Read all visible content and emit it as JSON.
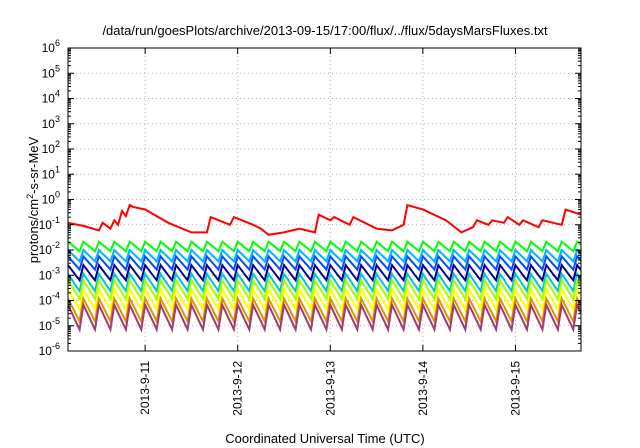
{
  "chart_data": {
    "type": "line",
    "title": "/data/run/goesPlots/archive/2013-09-15/17:00/flux/../flux/5daysMarsFluxes.txt",
    "xlabel": "Coordinated Universal Time (UTC)",
    "ylabel": "protons/cm2-s-sr-MeV",
    "yscale": "log",
    "ylim": [
      1e-06,
      1000000.0
    ],
    "xlim": [
      "2013-09-10 04:00",
      "2013-09-15 17:00"
    ],
    "grid": true,
    "legend": "none",
    "x_ticks": [
      "2013-9-11",
      "2013-9-12",
      "2013-9-13",
      "2013-9-14",
      "2013-9-15"
    ],
    "y_ticks": [
      {
        "base": "10",
        "exp": "-6"
      },
      {
        "base": "10",
        "exp": "-5"
      },
      {
        "base": "10",
        "exp": "-4"
      },
      {
        "base": "10",
        "exp": "-3"
      },
      {
        "base": "10",
        "exp": "-2"
      },
      {
        "base": "10",
        "exp": "-1"
      },
      {
        "base": "10",
        "exp": "0"
      },
      {
        "base": "10",
        "exp": "1"
      },
      {
        "base": "10",
        "exp": "2"
      },
      {
        "base": "10",
        "exp": "3"
      },
      {
        "base": "10",
        "exp": "4"
      },
      {
        "base": "10",
        "exp": "5"
      },
      {
        "base": "10",
        "exp": "6"
      }
    ],
    "series": [
      {
        "color": "#ff0000",
        "x": [
          "2013-09-10 04:00",
          "2013-09-10 08:00",
          "2013-09-10 12:00",
          "2013-09-10 13:00",
          "2013-09-10 15:00",
          "2013-09-10 16:00",
          "2013-09-10 17:00",
          "2013-09-10 18:00",
          "2013-09-10 19:00",
          "2013-09-10 20:00",
          "2013-09-10 21:00",
          "2013-09-11 00:00",
          "2013-09-11 06:00",
          "2013-09-11 12:00",
          "2013-09-11 16:00",
          "2013-09-11 17:00",
          "2013-09-11 22:00",
          "2013-09-11 23:00",
          "2013-09-12 04:00",
          "2013-09-12 06:00",
          "2013-09-12 08:00",
          "2013-09-12 12:00",
          "2013-09-12 16:00",
          "2013-09-12 20:00",
          "2013-09-12 21:00",
          "2013-09-13 00:00",
          "2013-09-13 01:00",
          "2013-09-13 05:00",
          "2013-09-13 06:00",
          "2013-09-13 12:00",
          "2013-09-13 16:00",
          "2013-09-13 19:00",
          "2013-09-13 20:00",
          "2013-09-14 00:00",
          "2013-09-14 06:00",
          "2013-09-14 10:00",
          "2013-09-14 13:00",
          "2013-09-14 14:00",
          "2013-09-14 17:00",
          "2013-09-14 18:00",
          "2013-09-14 21:00",
          "2013-09-14 22:00",
          "2013-09-15 01:00",
          "2013-09-15 02:00",
          "2013-09-15 06:00",
          "2013-09-15 07:00",
          "2013-09-15 12:00",
          "2013-09-15 13:00",
          "2013-09-15 17:00"
        ],
        "y": [
          0.12,
          0.09,
          0.06,
          0.12,
          0.07,
          0.15,
          0.1,
          0.35,
          0.22,
          0.6,
          0.5,
          0.4,
          0.12,
          0.05,
          0.05,
          0.2,
          0.1,
          0.2,
          0.1,
          0.07,
          0.04,
          0.05,
          0.07,
          0.05,
          0.25,
          0.15,
          0.2,
          0.1,
          0.2,
          0.07,
          0.06,
          0.1,
          0.6,
          0.4,
          0.15,
          0.05,
          0.08,
          0.15,
          0.1,
          0.15,
          0.12,
          0.2,
          0.1,
          0.15,
          0.08,
          0.15,
          0.1,
          0.4,
          0.25
        ]
      },
      {
        "color": "#00ff00",
        "base": 0.012,
        "amp": 0.5,
        "period_hours": 4
      },
      {
        "color": "#00b4ff",
        "base": 0.005,
        "amp": 0.6,
        "period_hours": 4
      },
      {
        "color": "#0050ff",
        "base": 0.0025,
        "amp": 0.7,
        "period_hours": 4
      },
      {
        "color": "#00008c",
        "base": 0.001,
        "amp": 0.8,
        "period_hours": 4
      },
      {
        "color": "#00c8c8",
        "base": 0.0004,
        "amp": 0.9,
        "period_hours": 4
      },
      {
        "color": "#a0ff00",
        "base": 0.0002,
        "amp": 1.0,
        "period_hours": 4
      },
      {
        "color": "#ffff00",
        "base": 8e-05,
        "amp": 1.1,
        "period_hours": 4
      },
      {
        "color": "#e09000",
        "base": 3e-05,
        "amp": 1.2,
        "period_hours": 4
      },
      {
        "color": "#a03c70",
        "base": 1.5e-05,
        "amp": 1.3,
        "period_hours": 4
      }
    ]
  }
}
